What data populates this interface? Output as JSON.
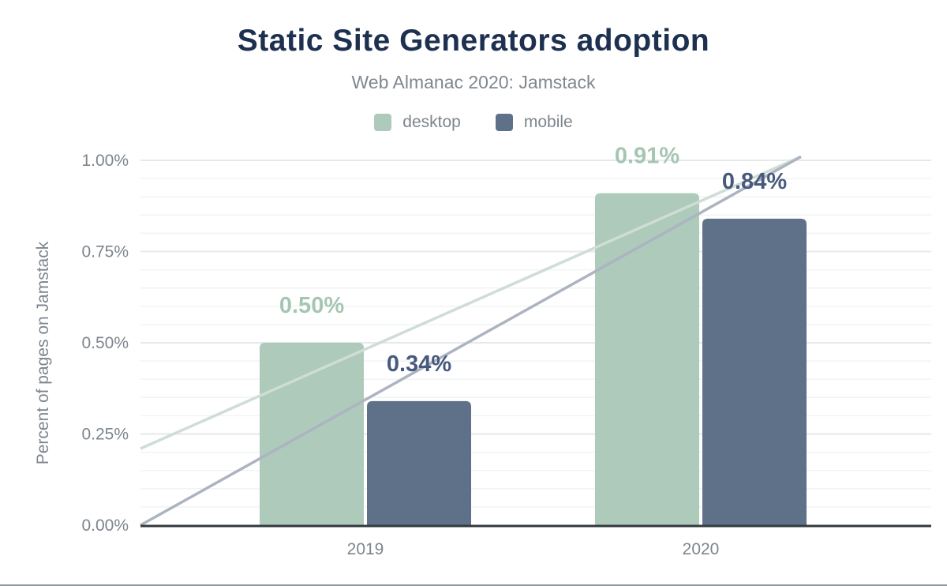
{
  "chart_data": {
    "type": "bar",
    "title": "Static Site Generators adoption",
    "subtitle": "Web Almanac 2020: Jamstack",
    "categories": [
      "2019",
      "2020"
    ],
    "series": [
      {
        "name": "desktop",
        "values": [
          0.5,
          0.91
        ],
        "labels": [
          "0.50%",
          "0.91%"
        ],
        "color": "#adcaba",
        "label_color": "#a5c6b3",
        "trend_color": "#cfddd5"
      },
      {
        "name": "mobile",
        "values": [
          0.34,
          0.84
        ],
        "labels": [
          "0.34%",
          "0.84%"
        ],
        "color": "#5f7189",
        "label_color": "#47597c",
        "trend_color": "#adb4c1"
      }
    ],
    "trend_lines": [
      {
        "series": "desktop",
        "start_value": 0.21,
        "end_value": 1.01
      },
      {
        "series": "mobile",
        "start_value": 0.0,
        "end_value": 1.01
      }
    ],
    "xlabel": "",
    "ylabel": "Percent of pages on Jamstack",
    "yticks": [
      "0.00%",
      "0.25%",
      "0.50%",
      "0.75%",
      "1.00%"
    ],
    "ytick_values": [
      0,
      0.25,
      0.5,
      0.75,
      1.0
    ],
    "ylim": [
      0,
      1.0
    ],
    "minor_grid_step": 0.05,
    "grid": true,
    "legend_position": "top",
    "colors": {
      "title": "#1e3050",
      "subtitle": "#80878f",
      "axis_text": "#7d858d",
      "axis_line": "#33383e",
      "major_grid": "#e5e9e9",
      "minor_grid": "#f1f4f4",
      "background": "#ffffff",
      "bottom_rule": "#8f979c"
    }
  }
}
